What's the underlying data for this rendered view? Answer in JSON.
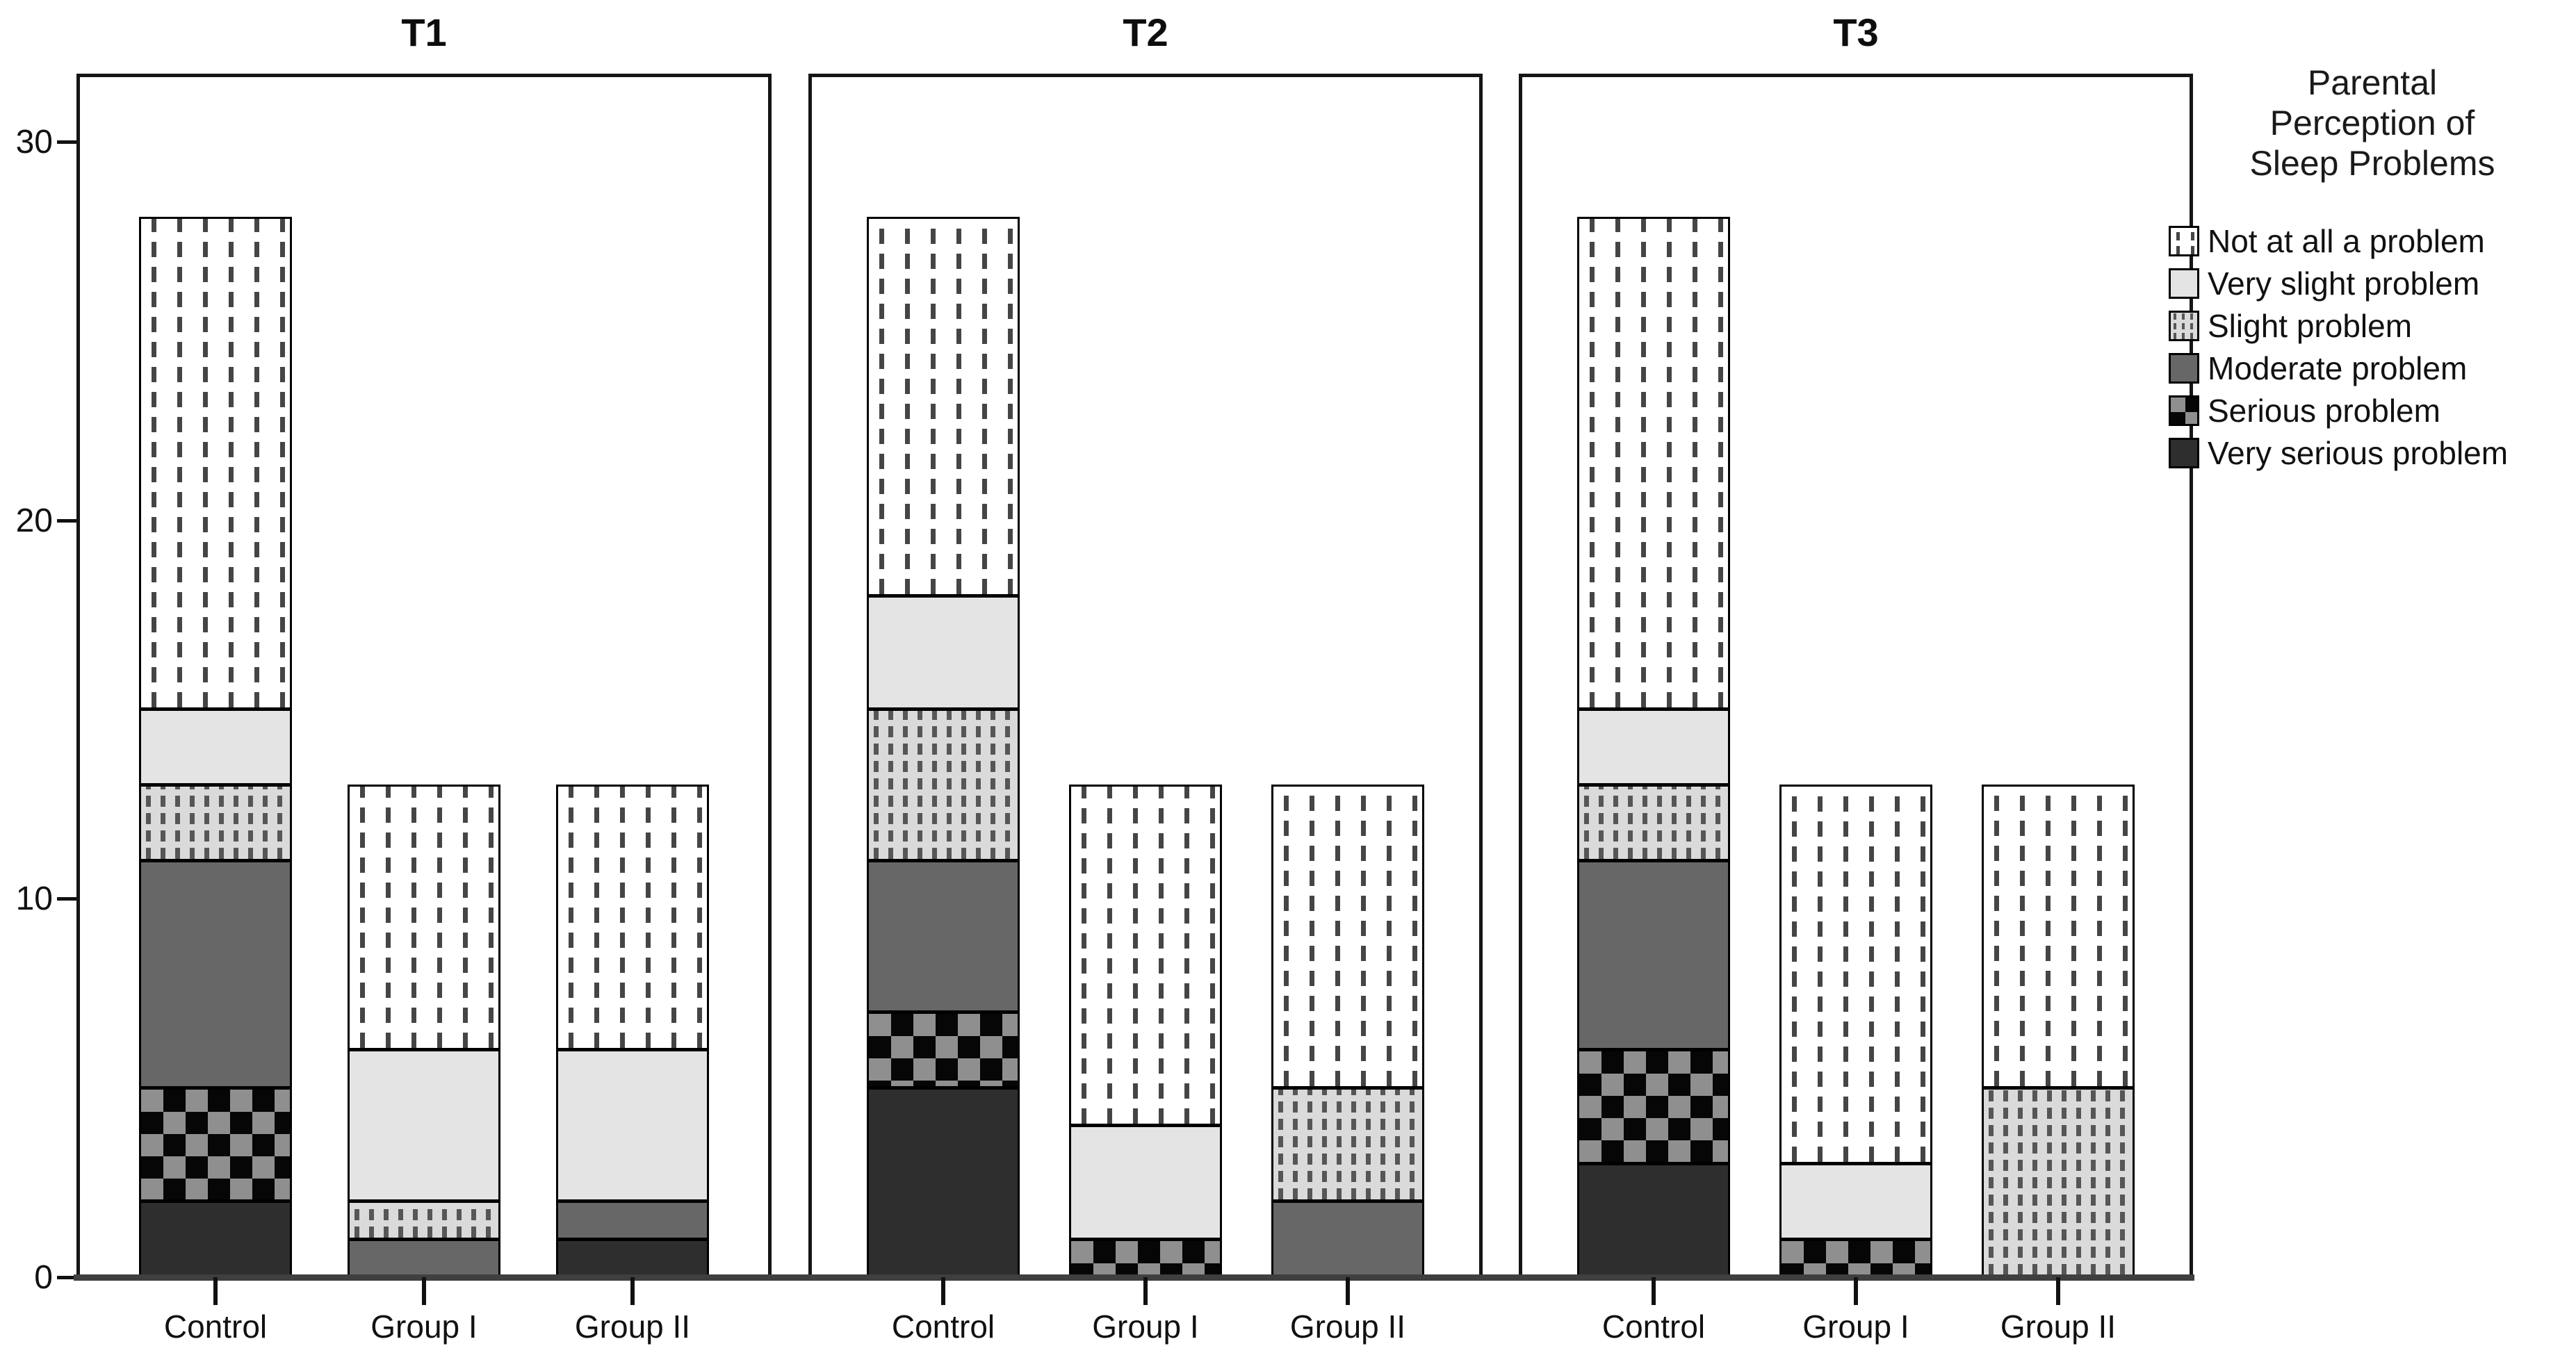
{
  "figure": {
    "y_axis": {
      "ticks": [
        0,
        10,
        20,
        30
      ]
    },
    "x_categories": [
      "Control",
      "Group I",
      "Group II"
    ],
    "legend": {
      "title_lines": [
        "Parental",
        "Perception of",
        "Sleep Problems"
      ],
      "items": [
        {
          "label": "Not at all a problem",
          "pattern": "not-at-all"
        },
        {
          "label": "Very slight problem",
          "pattern": "very-slight"
        },
        {
          "label": "Slight problem",
          "pattern": "slight"
        },
        {
          "label": "Moderate problem",
          "pattern": "moderate"
        },
        {
          "label": "Serious problem",
          "pattern": "serious"
        },
        {
          "label": "Very serious problem",
          "pattern": "very-serious"
        }
      ]
    }
  },
  "chart_data": {
    "type": "bar",
    "stacked": true,
    "title": "",
    "xlabel": "",
    "ylabel": "",
    "ylim": [
      0,
      31.8
    ],
    "grid": false,
    "legend_position": "right",
    "legend_title": "Parental Perception of Sleep Problems",
    "categories": [
      "Control",
      "Group I",
      "Group II"
    ],
    "stack_order_bottom_to_top": [
      "Very serious problem",
      "Serious problem",
      "Moderate problem",
      "Slight problem",
      "Very slight problem",
      "Not at all a problem"
    ],
    "panels": [
      {
        "title": "T1",
        "series": [
          {
            "name": "Very serious problem",
            "pattern": "very-serious",
            "values": [
              2,
              0,
              1
            ]
          },
          {
            "name": "Serious problem",
            "pattern": "serious",
            "values": [
              3,
              0,
              0
            ]
          },
          {
            "name": "Moderate problem",
            "pattern": "moderate",
            "values": [
              6,
              1,
              1
            ]
          },
          {
            "name": "Slight problem",
            "pattern": "slight",
            "values": [
              2,
              1,
              0
            ]
          },
          {
            "name": "Very slight problem",
            "pattern": "very-slight",
            "values": [
              2,
              4,
              4
            ]
          },
          {
            "name": "Not at all a problem",
            "pattern": "not-at-all",
            "values": [
              13,
              7,
              7
            ]
          }
        ],
        "totals": [
          28,
          13,
          13
        ]
      },
      {
        "title": "T2",
        "series": [
          {
            "name": "Very serious problem",
            "pattern": "very-serious",
            "values": [
              5,
              0,
              0
            ]
          },
          {
            "name": "Serious problem",
            "pattern": "serious",
            "values": [
              2,
              1,
              0
            ]
          },
          {
            "name": "Moderate problem",
            "pattern": "moderate",
            "values": [
              4,
              0,
              2
            ]
          },
          {
            "name": "Slight problem",
            "pattern": "slight",
            "values": [
              4,
              0,
              3
            ]
          },
          {
            "name": "Very slight problem",
            "pattern": "very-slight",
            "values": [
              3,
              3,
              0
            ]
          },
          {
            "name": "Not at all a problem",
            "pattern": "not-at-all",
            "values": [
              10,
              9,
              8
            ]
          }
        ],
        "totals": [
          28,
          13,
          13
        ]
      },
      {
        "title": "T3",
        "series": [
          {
            "name": "Very serious problem",
            "pattern": "very-serious",
            "values": [
              3,
              0,
              0
            ]
          },
          {
            "name": "Serious problem",
            "pattern": "serious",
            "values": [
              3,
              1,
              0
            ]
          },
          {
            "name": "Moderate problem",
            "pattern": "moderate",
            "values": [
              5,
              0,
              0
            ]
          },
          {
            "name": "Slight problem",
            "pattern": "slight",
            "values": [
              2,
              0,
              5
            ]
          },
          {
            "name": "Very slight problem",
            "pattern": "very-slight",
            "values": [
              2,
              2,
              0
            ]
          },
          {
            "name": "Not at all a problem",
            "pattern": "not-at-all",
            "values": [
              13,
              10,
              8
            ]
          }
        ],
        "totals": [
          28,
          13,
          13
        ]
      }
    ]
  },
  "colors": {
    "very_serious": "#2e2e2e",
    "serious_checker_dark": "#060606",
    "serious_checker_light": "#8f8f8f",
    "moderate": "#676767",
    "slight_bg": "#dadada",
    "slight_dash": "#565656",
    "very_slight": "#e4e4e4",
    "not_at_all_bg": "#ffffff",
    "not_at_all_dash": "#454545",
    "axis_line": "#3f3f3f",
    "segment_border": "#000000",
    "text": "#111111"
  }
}
